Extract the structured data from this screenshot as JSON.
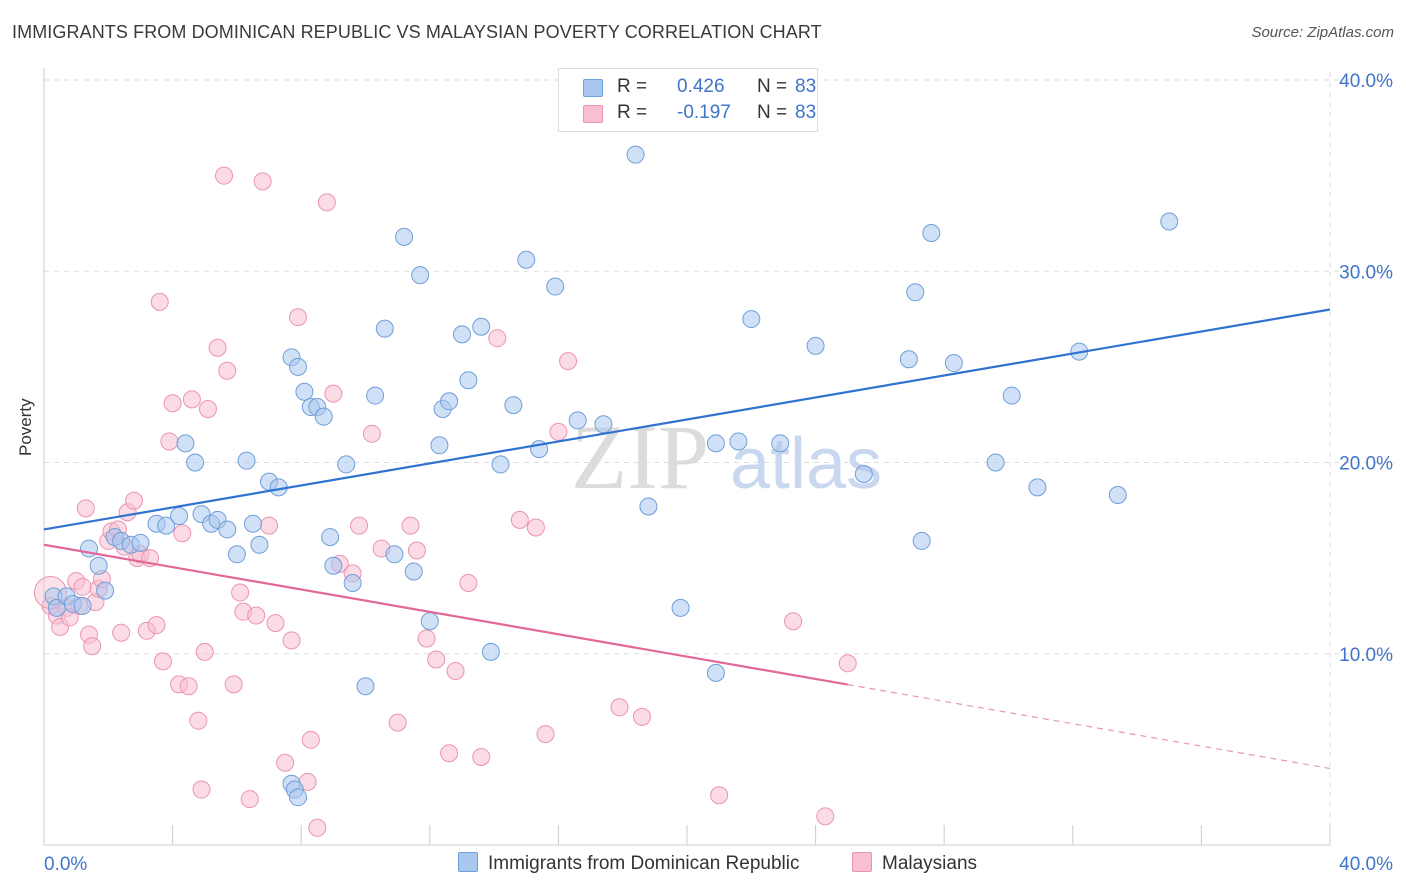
{
  "title": "IMMIGRANTS FROM DOMINICAN REPUBLIC VS MALAYSIAN POVERTY CORRELATION CHART",
  "source": "Source: ZipAtlas.com",
  "colors": {
    "blue_fill": "#a9c6ee",
    "blue_stroke": "#6f9fd8",
    "blue_line": "#2f72d0",
    "pink_fill": "#f7bfd1",
    "pink_stroke": "#ec93b1",
    "pink_line": "#e4679a",
    "axis_label": "#3f74c8",
    "grid": "#dddddd"
  },
  "legend": {
    "r_label": "R =",
    "n_label": "N =",
    "series": [
      {
        "r": "0.426",
        "n": "83"
      },
      {
        "r": "-0.197",
        "n": "83"
      }
    ]
  },
  "chart_data": {
    "type": "scatter",
    "title": "IMMIGRANTS FROM DOMINICAN REPUBLIC VS MALAYSIAN POVERTY CORRELATION CHART",
    "xlabel": "",
    "ylabel": "Poverty",
    "xlim": [
      0,
      40
    ],
    "ylim": [
      0,
      40
    ],
    "x_tick_labels": [
      "0.0%",
      "40.0%"
    ],
    "y_tick_labels": [
      "10.0%",
      "20.0%",
      "30.0%",
      "40.0%"
    ],
    "y_ticks": [
      10,
      20,
      30,
      40
    ],
    "grid": true,
    "legend_position": "top-center",
    "watermark": "ZIPatlas",
    "series": [
      {
        "name": "Immigrants from Dominican Republic",
        "r": 0.426,
        "n": 83,
        "trend": {
          "x": [
            0,
            40
          ],
          "y": [
            16.5,
            28.0
          ],
          "style": "solid"
        },
        "points": [
          [
            0.3,
            13.0
          ],
          [
            0.4,
            12.4
          ],
          [
            0.7,
            13.0
          ],
          [
            0.9,
            12.6
          ],
          [
            1.2,
            12.5
          ],
          [
            1.4,
            15.5
          ],
          [
            1.7,
            14.6
          ],
          [
            1.9,
            13.3
          ],
          [
            2.2,
            16.1
          ],
          [
            2.4,
            15.9
          ],
          [
            2.7,
            15.7
          ],
          [
            3.0,
            15.8
          ],
          [
            3.5,
            16.8
          ],
          [
            3.8,
            16.7
          ],
          [
            4.2,
            17.2
          ],
          [
            4.4,
            21.0
          ],
          [
            4.7,
            20.0
          ],
          [
            4.9,
            17.3
          ],
          [
            5.2,
            16.8
          ],
          [
            5.4,
            17.0
          ],
          [
            5.7,
            16.5
          ],
          [
            6.0,
            15.2
          ],
          [
            6.3,
            20.1
          ],
          [
            6.5,
            16.8
          ],
          [
            6.7,
            15.7
          ],
          [
            7.0,
            19.0
          ],
          [
            7.3,
            18.7
          ],
          [
            7.7,
            3.2
          ],
          [
            7.8,
            2.9
          ],
          [
            7.9,
            2.5
          ],
          [
            7.7,
            25.5
          ],
          [
            7.9,
            25.0
          ],
          [
            8.1,
            23.7
          ],
          [
            8.3,
            22.9
          ],
          [
            8.5,
            22.9
          ],
          [
            8.7,
            22.4
          ],
          [
            8.9,
            16.1
          ],
          [
            9.0,
            14.6
          ],
          [
            9.4,
            19.9
          ],
          [
            9.6,
            13.7
          ],
          [
            10.0,
            8.3
          ],
          [
            10.3,
            23.5
          ],
          [
            10.6,
            27.0
          ],
          [
            10.9,
            15.2
          ],
          [
            11.2,
            31.8
          ],
          [
            11.5,
            14.3
          ],
          [
            11.7,
            29.8
          ],
          [
            12.0,
            11.7
          ],
          [
            12.3,
            20.9
          ],
          [
            12.4,
            22.8
          ],
          [
            12.6,
            23.2
          ],
          [
            13.0,
            26.7
          ],
          [
            13.2,
            24.3
          ],
          [
            13.6,
            27.1
          ],
          [
            13.9,
            10.1
          ],
          [
            14.2,
            19.9
          ],
          [
            14.6,
            23.0
          ],
          [
            15.0,
            30.6
          ],
          [
            15.4,
            20.7
          ],
          [
            15.9,
            29.2
          ],
          [
            16.6,
            22.2
          ],
          [
            17.4,
            22.0
          ],
          [
            18.4,
            36.1
          ],
          [
            18.8,
            17.7
          ],
          [
            19.8,
            12.4
          ],
          [
            20.9,
            9.0
          ],
          [
            20.9,
            21.0
          ],
          [
            21.6,
            21.1
          ],
          [
            22.0,
            27.5
          ],
          [
            22.9,
            21.0
          ],
          [
            24.0,
            26.1
          ],
          [
            25.5,
            19.4
          ],
          [
            26.9,
            25.4
          ],
          [
            27.1,
            28.9
          ],
          [
            27.3,
            15.9
          ],
          [
            27.6,
            32.0
          ],
          [
            28.3,
            25.2
          ],
          [
            29.6,
            20.0
          ],
          [
            30.1,
            23.5
          ],
          [
            30.9,
            18.7
          ],
          [
            32.2,
            25.8
          ],
          [
            33.4,
            18.3
          ],
          [
            35.0,
            32.6
          ]
        ]
      },
      {
        "name": "Malaysians",
        "r": -0.197,
        "n": 83,
        "trend": {
          "x": [
            0,
            40
          ],
          "y": [
            15.7,
            4.0
          ],
          "solid_until_x": 25,
          "style": "solid-then-dashed"
        },
        "points": [
          [
            0.2,
            12.5
          ],
          [
            0.4,
            12.0
          ],
          [
            0.5,
            11.4
          ],
          [
            0.7,
            12.4
          ],
          [
            0.8,
            11.9
          ],
          [
            1.0,
            13.8
          ],
          [
            1.1,
            12.5
          ],
          [
            1.2,
            13.5
          ],
          [
            1.3,
            17.6
          ],
          [
            1.4,
            11.0
          ],
          [
            1.5,
            10.4
          ],
          [
            1.6,
            12.7
          ],
          [
            1.7,
            13.4
          ],
          [
            1.8,
            13.9
          ],
          [
            2.0,
            15.9
          ],
          [
            2.1,
            16.4
          ],
          [
            2.3,
            16.5
          ],
          [
            2.4,
            11.1
          ],
          [
            2.5,
            15.6
          ],
          [
            2.6,
            17.4
          ],
          [
            2.8,
            18.0
          ],
          [
            2.9,
            15.0
          ],
          [
            3.0,
            15.2
          ],
          [
            3.2,
            11.2
          ],
          [
            3.3,
            15.0
          ],
          [
            3.5,
            11.5
          ],
          [
            3.6,
            28.4
          ],
          [
            3.7,
            9.6
          ],
          [
            3.9,
            21.1
          ],
          [
            4.0,
            23.1
          ],
          [
            4.2,
            8.4
          ],
          [
            4.3,
            16.3
          ],
          [
            4.5,
            8.3
          ],
          [
            4.6,
            23.3
          ],
          [
            4.8,
            6.5
          ],
          [
            4.9,
            2.9
          ],
          [
            5.0,
            10.1
          ],
          [
            5.1,
            22.8
          ],
          [
            5.4,
            26.0
          ],
          [
            5.6,
            35.0
          ],
          [
            5.7,
            24.8
          ],
          [
            5.9,
            8.4
          ],
          [
            6.1,
            13.2
          ],
          [
            6.2,
            12.2
          ],
          [
            6.4,
            2.4
          ],
          [
            6.6,
            12.0
          ],
          [
            6.8,
            34.7
          ],
          [
            7.0,
            16.7
          ],
          [
            7.2,
            11.6
          ],
          [
            7.5,
            4.3
          ],
          [
            7.7,
            10.7
          ],
          [
            7.9,
            27.6
          ],
          [
            8.2,
            3.3
          ],
          [
            8.3,
            5.5
          ],
          [
            8.5,
            0.9
          ],
          [
            8.8,
            33.6
          ],
          [
            9.0,
            23.6
          ],
          [
            9.2,
            14.7
          ],
          [
            9.6,
            14.2
          ],
          [
            9.8,
            16.7
          ],
          [
            10.2,
            21.5
          ],
          [
            10.5,
            15.5
          ],
          [
            11.0,
            6.4
          ],
          [
            11.4,
            16.7
          ],
          [
            11.6,
            15.4
          ],
          [
            11.9,
            10.8
          ],
          [
            12.2,
            9.7
          ],
          [
            12.6,
            4.8
          ],
          [
            12.8,
            9.1
          ],
          [
            13.2,
            13.7
          ],
          [
            13.6,
            4.6
          ],
          [
            14.1,
            26.5
          ],
          [
            14.8,
            17.0
          ],
          [
            15.3,
            16.6
          ],
          [
            15.6,
            5.8
          ],
          [
            16.0,
            21.6
          ],
          [
            16.3,
            25.3
          ],
          [
            17.9,
            7.2
          ],
          [
            18.6,
            6.7
          ],
          [
            21.0,
            2.6
          ],
          [
            23.3,
            11.7
          ],
          [
            24.3,
            1.5
          ],
          [
            25.0,
            9.5
          ]
        ]
      }
    ]
  }
}
